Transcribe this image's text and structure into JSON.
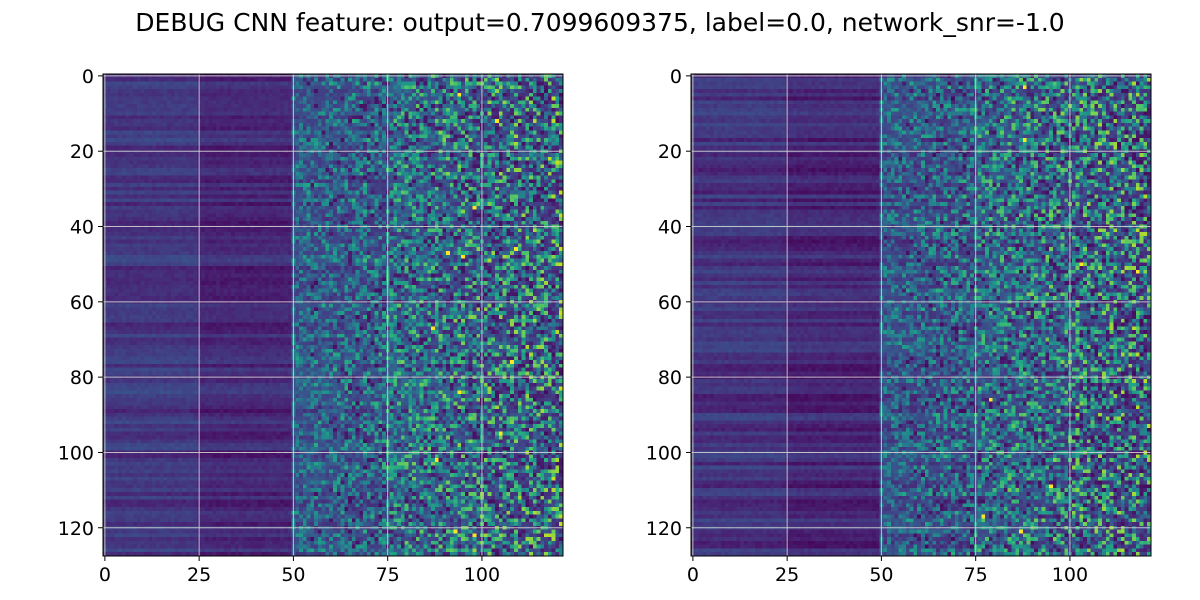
{
  "figure": {
    "title": "DEBUG CNN feature: output=0.7099609375, label=0.0, network_snr=-1.0"
  },
  "chart_data": [
    {
      "type": "heatmap",
      "panel": "left",
      "colormap": "viridis",
      "shape": [
        128,
        122
      ],
      "x_range": [
        0,
        121
      ],
      "y_range": [
        0,
        127
      ],
      "y_inverted": true,
      "grid": true,
      "x_ticks": [
        {
          "value": 0,
          "label": "0"
        },
        {
          "value": 25,
          "label": "25"
        },
        {
          "value": 50,
          "label": "50"
        },
        {
          "value": 75,
          "label": "75"
        },
        {
          "value": 100,
          "label": "100"
        }
      ],
      "y_ticks": [
        {
          "value": 0,
          "label": "0"
        },
        {
          "value": 20,
          "label": "20"
        },
        {
          "value": 40,
          "label": "40"
        },
        {
          "value": 60,
          "label": "60"
        },
        {
          "value": 80,
          "label": "80"
        },
        {
          "value": 100,
          "label": "100"
        },
        {
          "value": 120,
          "label": "120"
        }
      ],
      "column_profile": [
        {
          "from": 0,
          "to": 25,
          "mean": 0.17
        },
        {
          "from": 25,
          "to": 50,
          "mean": 0.12
        },
        {
          "from": 50,
          "to": 75,
          "mean": 0.2
        },
        {
          "from": 75,
          "to": 121,
          "mean": 0.3
        }
      ],
      "bright_cells": [
        {
          "row": 5,
          "col": 94
        },
        {
          "row": 12,
          "col": 104
        },
        {
          "row": 35,
          "col": 98
        },
        {
          "row": 47,
          "col": 91
        },
        {
          "row": 48,
          "col": 95
        },
        {
          "row": 46,
          "col": 109
        },
        {
          "row": 67,
          "col": 87
        },
        {
          "row": 76,
          "col": 108
        },
        {
          "row": 84,
          "col": 94
        },
        {
          "row": 95,
          "col": 105
        },
        {
          "row": 102,
          "col": 88
        },
        {
          "row": 122,
          "col": 98
        },
        {
          "row": 121,
          "col": 93
        }
      ]
    },
    {
      "type": "heatmap",
      "panel": "right",
      "colormap": "viridis",
      "shape": [
        128,
        122
      ],
      "x_range": [
        0,
        121
      ],
      "y_range": [
        0,
        127
      ],
      "y_inverted": true,
      "grid": true,
      "x_ticks": [
        {
          "value": 0,
          "label": "0"
        },
        {
          "value": 25,
          "label": "25"
        },
        {
          "value": 50,
          "label": "50"
        },
        {
          "value": 75,
          "label": "75"
        },
        {
          "value": 100,
          "label": "100"
        }
      ],
      "y_ticks": [
        {
          "value": 0,
          "label": "0"
        },
        {
          "value": 20,
          "label": "20"
        },
        {
          "value": 40,
          "label": "40"
        },
        {
          "value": 60,
          "label": "60"
        },
        {
          "value": 80,
          "label": "80"
        },
        {
          "value": 100,
          "label": "100"
        },
        {
          "value": 120,
          "label": "120"
        }
      ],
      "column_profile": [
        {
          "from": 0,
          "to": 25,
          "mean": 0.15
        },
        {
          "from": 25,
          "to": 50,
          "mean": 0.11
        },
        {
          "from": 50,
          "to": 75,
          "mean": 0.18
        },
        {
          "from": 75,
          "to": 121,
          "mean": 0.27
        }
      ],
      "bright_cells": [
        {
          "row": 3,
          "col": 88
        },
        {
          "row": 17,
          "col": 88
        },
        {
          "row": 50,
          "col": 103
        },
        {
          "row": 52,
          "col": 118
        },
        {
          "row": 86,
          "col": 79
        },
        {
          "row": 109,
          "col": 95
        },
        {
          "row": 117,
          "col": 77
        },
        {
          "row": 121,
          "col": 87
        }
      ]
    }
  ]
}
